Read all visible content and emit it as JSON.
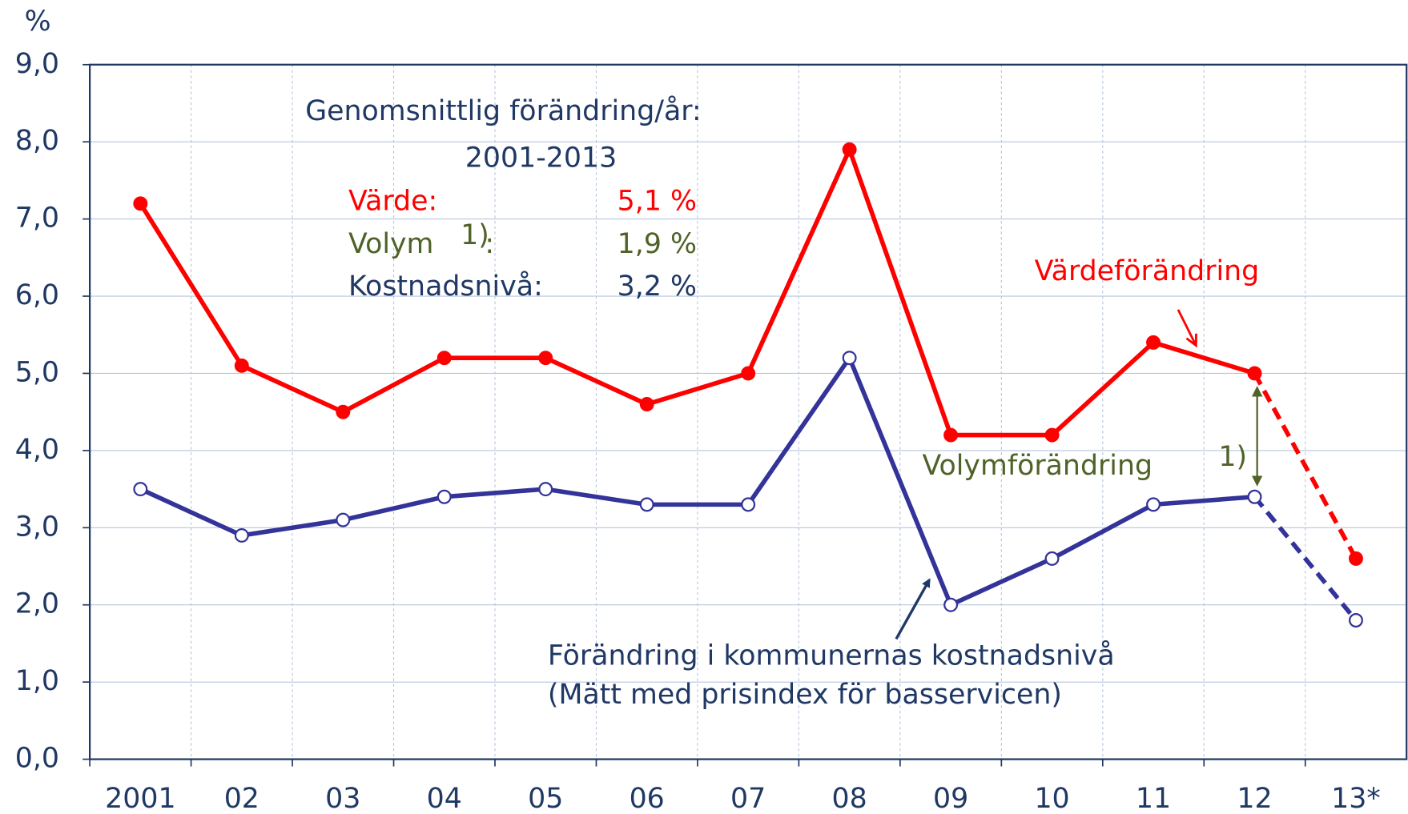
{
  "chart_data": {
    "type": "line",
    "y_axis_label": "%",
    "categories": [
      "2001",
      "02",
      "03",
      "04",
      "05",
      "06",
      "07",
      "08",
      "09",
      "10",
      "11",
      "12",
      "13*"
    ],
    "series": [
      {
        "name": "Värdeförändring",
        "color": "#ff0000",
        "marker_fill": "#ff0000",
        "values": [
          7.2,
          5.1,
          4.5,
          5.2,
          5.2,
          4.6,
          5.0,
          7.9,
          4.2,
          4.2,
          5.4,
          5.0,
          2.6
        ]
      },
      {
        "name": "Förändring i kommunernas kostnadsnivå",
        "color": "#333399",
        "marker_fill": "#ffffff",
        "values": [
          3.5,
          2.9,
          3.1,
          3.4,
          3.5,
          3.3,
          3.3,
          5.2,
          2.0,
          2.6,
          3.3,
          3.4,
          1.8
        ]
      }
    ],
    "dashed_last_segment": true,
    "ylim": [
      0,
      9
    ],
    "yticks": [
      {
        "value": 0,
        "label": "0,0"
      },
      {
        "value": 1,
        "label": "1,0"
      },
      {
        "value": 2,
        "label": "2,0"
      },
      {
        "value": 3,
        "label": "3,0"
      },
      {
        "value": 4,
        "label": "4,0"
      },
      {
        "value": 5,
        "label": "5,0"
      },
      {
        "value": 6,
        "label": "6,0"
      },
      {
        "value": 7,
        "label": "7,0"
      },
      {
        "value": 8,
        "label": "8,0"
      },
      {
        "value": 9,
        "label": "9,0"
      }
    ],
    "grid": true,
    "annotations": {
      "summary_title": "Genomsnittlig förändring/år:",
      "summary_period": "2001-2013",
      "value_label": "Värde:",
      "value_number": "5,1 %",
      "volume_label": "Volym",
      "volume_sup": "1)",
      "volume_colon": ":",
      "volume_number": "1,9 %",
      "cost_label": "Kostnadsnivå:",
      "cost_number": "3,2 %",
      "volume_change": "Volymförändring",
      "volume_change_sup": "1)",
      "cost_note": "(Mätt med prisindex för basservicen)"
    }
  }
}
